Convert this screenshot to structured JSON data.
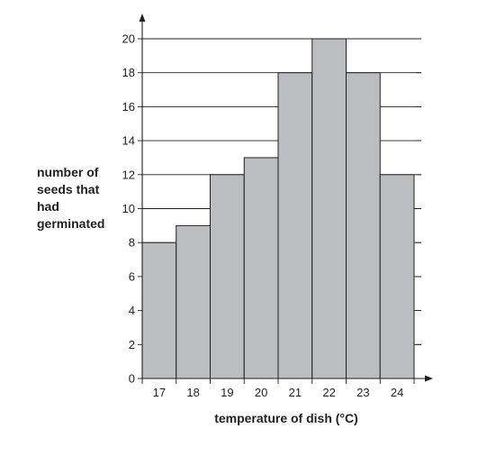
{
  "chart_data": {
    "type": "bar",
    "categories": [
      "17",
      "18",
      "19",
      "20",
      "21",
      "22",
      "23",
      "24"
    ],
    "values": [
      8,
      9,
      12,
      13,
      18,
      20,
      18,
      12
    ],
    "ylabel_lines": [
      "number of",
      "seeds that",
      "had",
      "germinated"
    ],
    "xlabel": "temperature of dish (°C)",
    "ylim": [
      0,
      20
    ],
    "yticks": [
      0,
      2,
      4,
      6,
      8,
      10,
      12,
      14,
      16,
      18,
      20
    ],
    "grid": true,
    "colors": {
      "bar_fill": "#bcbdc0",
      "bar_stroke": "#231f20",
      "axis": "#231f20",
      "grid": "#231f20"
    }
  }
}
